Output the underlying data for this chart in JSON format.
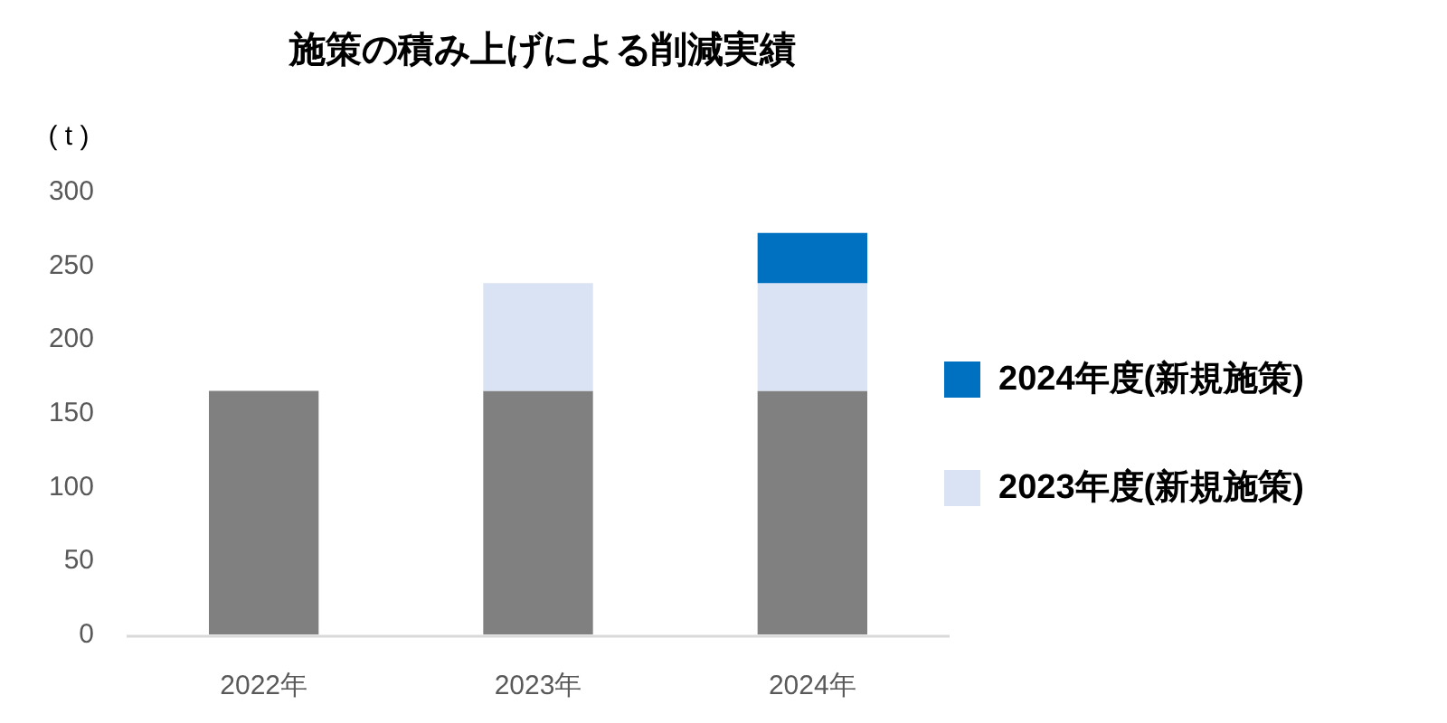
{
  "chart_data": {
    "type": "bar",
    "title": "施策の積み上げによる削減実績",
    "ylabel": "( t )",
    "categories": [
      "2022年",
      "2023年",
      "2024年"
    ],
    "stacked": true,
    "series": [
      {
        "color": "#808080",
        "values": [
          165,
          165,
          165
        ]
      },
      {
        "name": "2023年度(新規施策)",
        "color": "#dae3f3",
        "values": [
          null,
          73,
          73
        ]
      },
      {
        "name": "2024年度(新規施策)",
        "color": "#0070c0",
        "values": [
          null,
          null,
          34
        ]
      }
    ],
    "ylim": [
      0,
      300
    ],
    "yticks": [
      0,
      50,
      100,
      150,
      200,
      250,
      300
    ],
    "grid": false,
    "legend": "right"
  }
}
